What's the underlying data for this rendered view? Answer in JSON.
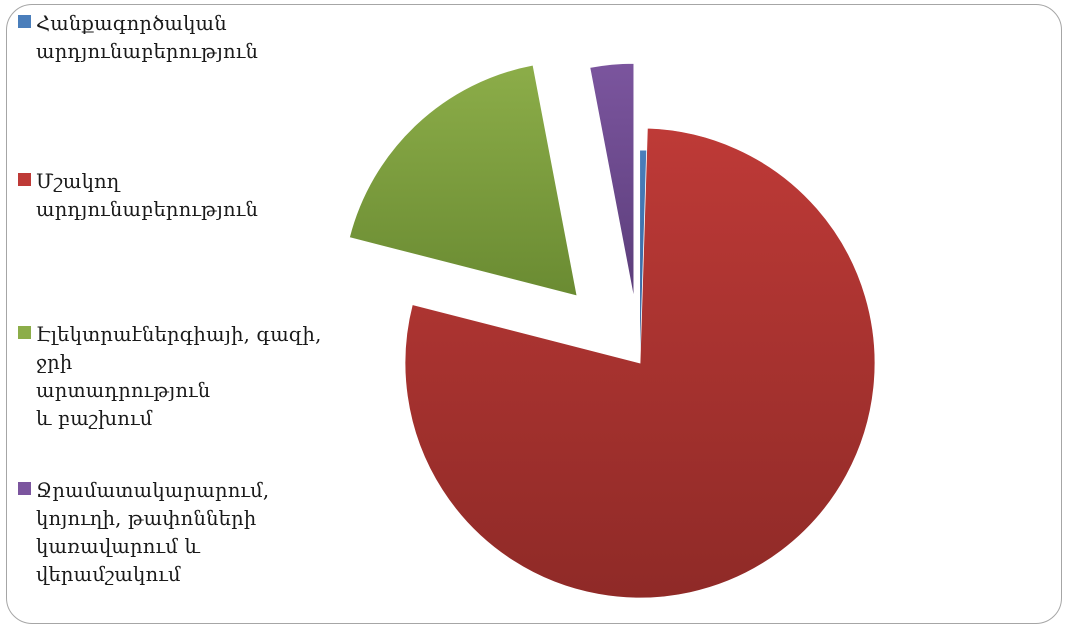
{
  "chart_data": {
    "type": "pie",
    "exploded": true,
    "start_angle_deg": 0,
    "direction": "clockwise",
    "legend_position": "left",
    "title": "",
    "categories": [
      "Հանքագործական\nարդյունաբերություն",
      "Մշակող\nարդյունաբերություն",
      "Էլեկտրաէներգիայի, գազի,\nջրի\nարտադրություն\nև բաշխում",
      "Ջրամատակարարում,\nկոյուղի, թափոնների\nկառավարում և\nվերամշակում"
    ],
    "values": [
      0.5,
      78.5,
      18.0,
      3.0
    ],
    "colors": [
      "#4a7ebb",
      "#be3a37",
      "#8cad49",
      "#7b559e"
    ],
    "colors_dark": [
      "#2f5f99",
      "#8f2a27",
      "#6a8b32",
      "#5b3d7a"
    ]
  }
}
